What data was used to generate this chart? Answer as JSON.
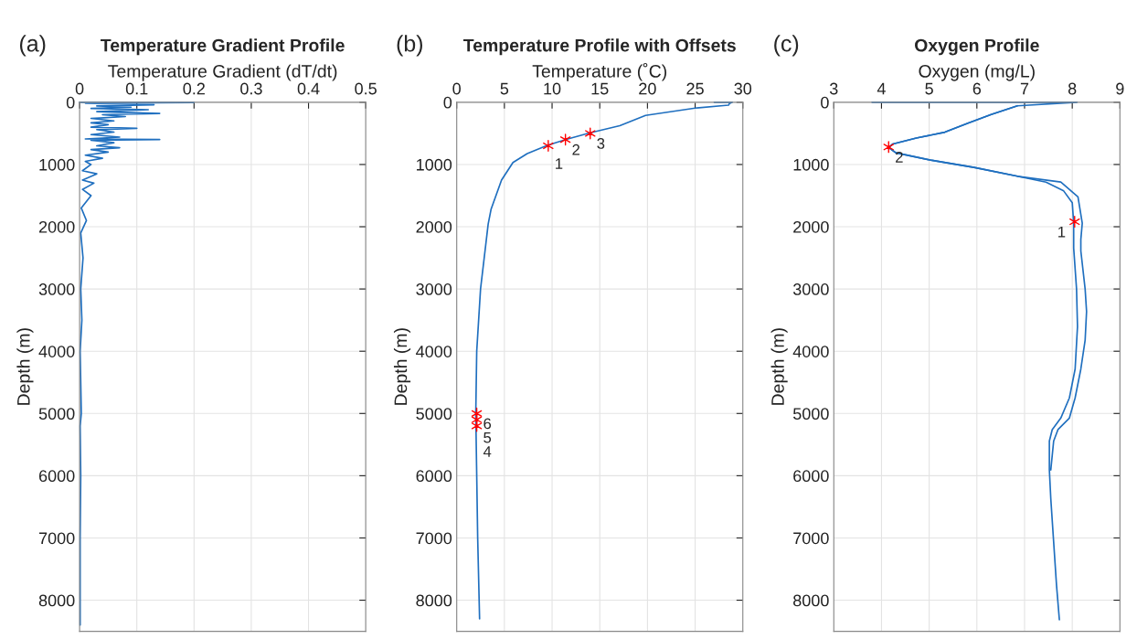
{
  "chart_data": [
    {
      "type": "line",
      "title": "Temperature Gradient Profile",
      "xlabel": "Temperature Gradient (dT/dt)",
      "ylabel": "Depth (m)",
      "annotations": [
        "(a)"
      ],
      "xlim": [
        0,
        0.5
      ],
      "xticks": [
        0,
        0.1,
        0.2,
        0.3,
        0.4,
        0.5
      ],
      "ylim": [
        8500,
        0
      ],
      "yticks": [
        0,
        1000,
        2000,
        3000,
        4000,
        5000,
        6000,
        7000,
        8000
      ],
      "grid": true,
      "series": [
        {
          "color": "#1f6fbf",
          "x": [
            0,
            0.2,
            0.01,
            0.13,
            0.03,
            0.09,
            0.02,
            0.12,
            0.03,
            0.14,
            0.04,
            0.08,
            0.02,
            0.06,
            0.02,
            0.05,
            0.02,
            0.1,
            0.03,
            0.06,
            0.02,
            0.07,
            0.01,
            0.14,
            0.02,
            0.06,
            0.03,
            0.07,
            0.02,
            0.05,
            0.01,
            0.04,
            0.01,
            0.02,
            0.005,
            0.03,
            0.005,
            0.025,
            0.005,
            0.02,
            0.003,
            0.012,
            0.002,
            0.006,
            0.002,
            0.004,
            0.001,
            0.003,
            0.001,
            0.002,
            0.001,
            0.001,
            0.001
          ],
          "values": [
            0,
            5,
            15,
            40,
            60,
            80,
            100,
            120,
            150,
            180,
            200,
            230,
            260,
            300,
            330,
            360,
            400,
            420,
            440,
            480,
            520,
            560,
            590,
            600,
            610,
            650,
            700,
            730,
            760,
            800,
            850,
            900,
            950,
            1000,
            1100,
            1150,
            1250,
            1300,
            1400,
            1500,
            1700,
            1900,
            2100,
            2500,
            3000,
            3500,
            4000,
            5000,
            5200,
            6000,
            7000,
            8000,
            8400
          ]
        }
      ]
    },
    {
      "type": "line",
      "title": "Temperature Profile with Offsets",
      "xlabel": "Temperature (˚C)",
      "ylabel": "Depth (m)",
      "xlim": [
        0,
        30
      ],
      "xticks": [
        0,
        5,
        10,
        15,
        20,
        25,
        30
      ],
      "ylim": [
        8500,
        0
      ],
      "yticks": [
        0,
        1000,
        2000,
        3000,
        4000,
        5000,
        6000,
        7000,
        8000
      ],
      "grid": true,
      "annotations": [
        "(b)",
        {
          "text": "1",
          "x": 9.6,
          "y": 700
        },
        {
          "text": "2",
          "x": 11.4,
          "y": 600
        },
        {
          "text": "3",
          "x": 14.0,
          "y": 500
        },
        {
          "text": "4",
          "x": 2.1,
          "y": 5200
        },
        {
          "text": "5",
          "x": 2.1,
          "y": 5100
        },
        {
          "text": "6",
          "x": 2.1,
          "y": 5000
        }
      ],
      "series": [
        {
          "color": "#1f6fbf",
          "x": [
            27.0,
            28.9,
            28.6,
            28.5,
            25.0,
            19.8,
            17.1,
            13.9,
            11.4,
            9.5,
            7.4,
            5.9,
            4.7,
            3.6,
            3.3,
            2.5,
            2.1,
            2.0,
            2.1,
            2.2,
            2.4
          ],
          "values": [
            0,
            0,
            20,
            47,
            94,
            212,
            377,
            495,
            600,
            693,
            825,
            967,
            1250,
            1722,
            1958,
            3000,
            4000,
            5000,
            6000,
            7000,
            8300
          ]
        },
        {
          "type": "scatter",
          "color": "#ff0000",
          "marker": "cross",
          "x": [
            9.6,
            11.4,
            14.0,
            2.1,
            2.1,
            2.1
          ],
          "values": [
            700,
            600,
            500,
            5200,
            5100,
            5000
          ]
        }
      ]
    },
    {
      "type": "line",
      "title": "Oxygen Profile",
      "xlabel": "Oxygen (mg/L)",
      "ylabel": "Depth (m)",
      "xlim": [
        3,
        9
      ],
      "xticks": [
        3,
        4,
        5,
        6,
        7,
        8,
        9
      ],
      "ylim": [
        8500,
        0
      ],
      "yticks": [
        0,
        1000,
        2000,
        3000,
        4000,
        5000,
        6000,
        7000,
        8000
      ],
      "grid": true,
      "annotations": [
        "(c)",
        {
          "text": "1",
          "x": 8.05,
          "y": 1920
        },
        {
          "text": "2",
          "x": 4.15,
          "y": 720
        }
      ],
      "series": [
        {
          "color": "#1f6fbf",
          "x": [
            3.8,
            8.1,
            6.85,
            6.3,
            5.8,
            5.33,
            4.73,
            4.24,
            4.15,
            4.3,
            5.03,
            5.94,
            6.85,
            7.45,
            7.82,
            8.0,
            8.03,
            8.03,
            8.03,
            8.09,
            8.11,
            8.06,
            7.94,
            7.76,
            7.58,
            7.52,
            7.52,
            7.55,
            7.61,
            7.67,
            7.73
          ],
          "values": [
            0,
            0,
            57,
            198,
            340,
            481,
            575,
            670,
            726,
            811,
            929,
            1047,
            1189,
            1283,
            1425,
            1613,
            1943,
            2204,
            2343,
            3000,
            3602,
            4287,
            4750,
            5074,
            5259,
            5444,
            5907,
            6370,
            7065,
            7759,
            8315
          ]
        },
        {
          "color": "#1f6fbf",
          "x": [
            6.85,
            6.3,
            5.8,
            5.33,
            4.73,
            4.24,
            4.15,
            4.3,
            5.03,
            5.94,
            6.85,
            7.76,
            8.12,
            8.21,
            8.18,
            8.18,
            8.27,
            8.3,
            8.27,
            8.18,
            8.06,
            7.94,
            7.7,
            7.61,
            7.55
          ],
          "values": [
            57,
            198,
            340,
            481,
            575,
            670,
            726,
            811,
            929,
            1047,
            1189,
            1283,
            1519,
            1943,
            2204,
            2389,
            3000,
            3361,
            3824,
            4287,
            4750,
            5074,
            5259,
            5444,
            5907
          ]
        },
        {
          "type": "scatter",
          "color": "#ff0000",
          "marker": "cross",
          "x": [
            8.05,
            4.15
          ],
          "values": [
            1920,
            720
          ]
        }
      ]
    }
  ]
}
